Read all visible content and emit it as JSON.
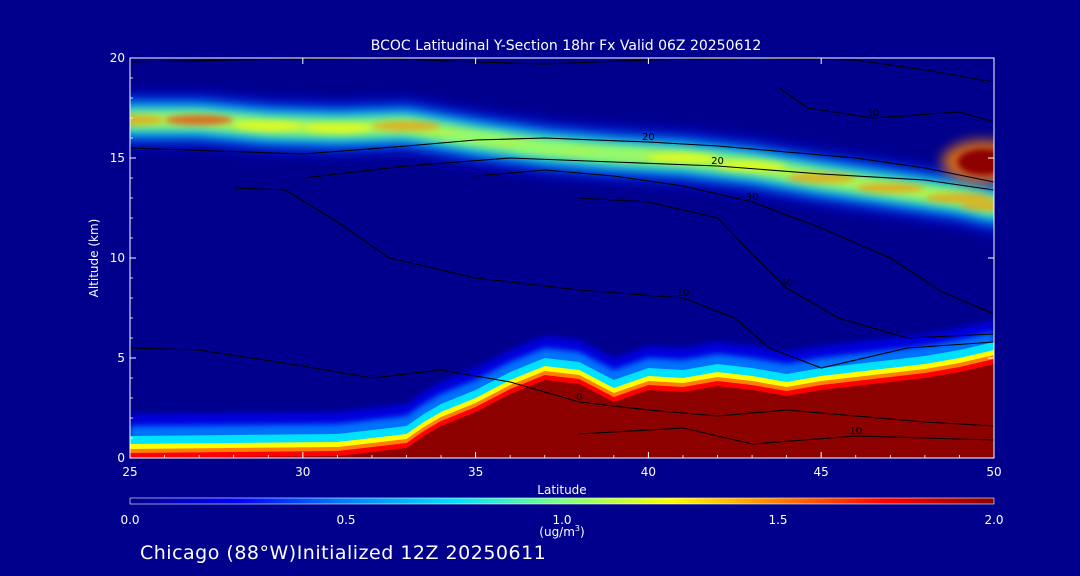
{
  "chart_data": {
    "type": "heatmap",
    "title": "BCOC Latitudinal Y-Section 18hr  Fx Valid 06Z 20250612",
    "xlabel": "Latitude",
    "ylabel": "Altitude (km)",
    "xlim": [
      25,
      50
    ],
    "ylim": [
      0,
      20
    ],
    "x_ticks": [
      "25",
      "30",
      "35",
      "40",
      "45",
      "50"
    ],
    "y_ticks": [
      "0",
      "5",
      "10",
      "15",
      "20"
    ],
    "colorbar": {
      "min": 0.0,
      "max": 2.0,
      "ticks": [
        "0.0",
        "0.5",
        "1.0",
        "1.5",
        "2.0"
      ],
      "units_prefix": "(ug/m",
      "units_sup": "3",
      "units_suffix": ")",
      "colors": [
        "#00008c",
        "#0000ff",
        "#0080ff",
        "#00e0ff",
        "#80ff80",
        "#ffff00",
        "#ff8000",
        "#ff0000",
        "#8c0000"
      ]
    },
    "fields": {
      "surface_layer": {
        "description_values": "concentration >= 2.0 ug/m3 below top edge",
        "lat": [
          25,
          31,
          33,
          33.5,
          34,
          35,
          36,
          37,
          38,
          39,
          40,
          41,
          42,
          43,
          44,
          45,
          46,
          47,
          48,
          49,
          50
        ],
        "top_km": [
          0,
          0.1,
          0.5,
          1.1,
          1.6,
          2.3,
          3.2,
          3.9,
          3.7,
          2.8,
          3.4,
          3.3,
          3.6,
          3.4,
          3.1,
          3.4,
          3.6,
          3.8,
          4.0,
          4.3,
          4.7
        ]
      },
      "upper_band": {
        "lat": [
          25,
          27,
          29,
          31,
          33,
          35,
          37,
          39,
          41,
          43,
          45,
          47,
          49,
          50
        ],
        "center_km": [
          16.9,
          16.9,
          16.6,
          16.5,
          16.6,
          16.0,
          15.5,
          15.2,
          15.0,
          14.6,
          14.0,
          13.5,
          13.0,
          12.6
        ],
        "peak_value": [
          1.4,
          1.7,
          1.3,
          1.2,
          1.6,
          1.1,
          0.9,
          1.0,
          1.2,
          1.3,
          1.4,
          1.4,
          1.5,
          1.5
        ]
      },
      "upper_hotspot": {
        "lat": 49.7,
        "alt_km": 14.8,
        "value": 2.0
      }
    },
    "contours": [
      {
        "label": "0",
        "points": [
          [
            25,
            19.8
          ],
          [
            28,
            19.9
          ],
          [
            32,
            20.0
          ],
          [
            35,
            19.8
          ],
          [
            37,
            19.7
          ],
          [
            40,
            19.9
          ],
          [
            43,
            20.0
          ],
          [
            46,
            19.9
          ],
          [
            48,
            19.4
          ],
          [
            50,
            18.8
          ]
        ]
      },
      {
        "label": "10",
        "points": [
          [
            43.8,
            18.5
          ],
          [
            44.6,
            17.5
          ],
          [
            46.5,
            17.0
          ],
          [
            49,
            17.3
          ],
          [
            50,
            16.8
          ]
        ]
      },
      {
        "label": "20",
        "points": [
          [
            25,
            15.5
          ],
          [
            30,
            15.2
          ],
          [
            33,
            15.6
          ],
          [
            35,
            15.9
          ],
          [
            37,
            16.0
          ],
          [
            40,
            15.8
          ],
          [
            42,
            15.6
          ],
          [
            44,
            15.3
          ],
          [
            46,
            15.0
          ],
          [
            48,
            14.5
          ],
          [
            50,
            13.8
          ]
        ]
      },
      {
        "label": "20",
        "points": [
          [
            30,
            14.0
          ],
          [
            33,
            14.6
          ],
          [
            36,
            15.0
          ],
          [
            39,
            14.8
          ],
          [
            42,
            14.6
          ],
          [
            45,
            14.2
          ],
          [
            48,
            13.9
          ],
          [
            50,
            13.4
          ]
        ]
      },
      {
        "label": "30",
        "points": [
          [
            35,
            14.1
          ],
          [
            37,
            14.4
          ],
          [
            39,
            14.1
          ],
          [
            41,
            13.6
          ],
          [
            43,
            12.8
          ],
          [
            45,
            11.5
          ],
          [
            47,
            10.0
          ],
          [
            48.5,
            8.3
          ],
          [
            50,
            7.2
          ]
        ]
      },
      {
        "label": "10",
        "points": [
          [
            28,
            13.5
          ],
          [
            29.5,
            13.4
          ],
          [
            31,
            11.8
          ],
          [
            32.5,
            10.0
          ],
          [
            35,
            9.0
          ],
          [
            38,
            8.4
          ],
          [
            41,
            8.0
          ],
          [
            42.5,
            7.0
          ],
          [
            43.5,
            5.5
          ],
          [
            45,
            4.5
          ],
          [
            47.5,
            5.5
          ],
          [
            50,
            5.8
          ]
        ]
      },
      {
        "label": "30",
        "points": [
          [
            38,
            13.0
          ],
          [
            40,
            12.8
          ],
          [
            42,
            12.0
          ],
          [
            43,
            10.2
          ],
          [
            44,
            8.5
          ],
          [
            45.5,
            7.0
          ],
          [
            47.5,
            6.0
          ],
          [
            50,
            6.2
          ]
        ]
      },
      {
        "label": "0",
        "points": [
          [
            25,
            5.5
          ],
          [
            27,
            5.4
          ],
          [
            28.5,
            5.0
          ],
          [
            30,
            4.6
          ],
          [
            32,
            4.0
          ],
          [
            34,
            4.4
          ],
          [
            36,
            3.8
          ],
          [
            38,
            2.8
          ],
          [
            40,
            2.4
          ],
          [
            42,
            2.1
          ],
          [
            44,
            2.4
          ],
          [
            46,
            2.1
          ],
          [
            48,
            1.8
          ],
          [
            50,
            1.6
          ]
        ]
      },
      {
        "label": "10",
        "points": [
          [
            38,
            1.2
          ],
          [
            41,
            1.5
          ],
          [
            43,
            0.7
          ],
          [
            46,
            1.1
          ],
          [
            48,
            1.0
          ],
          [
            50,
            0.9
          ]
        ]
      }
    ]
  },
  "footer": {
    "location": "Chicago (88°W)",
    "init": "Initialized 12Z 20250611"
  }
}
